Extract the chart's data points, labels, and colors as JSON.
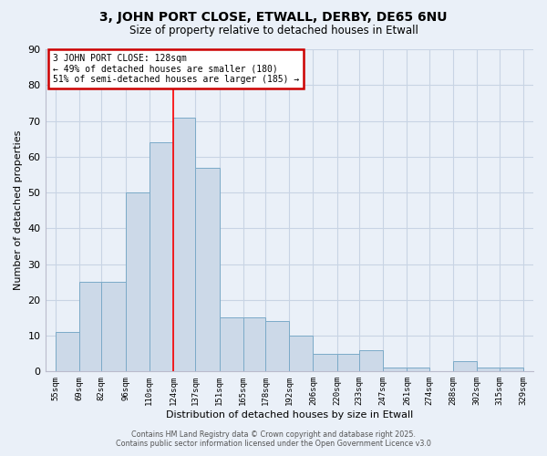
{
  "title_line1": "3, JOHN PORT CLOSE, ETWALL, DERBY, DE65 6NU",
  "title_line2": "Size of property relative to detached houses in Etwall",
  "xlabel": "Distribution of detached houses by size in Etwall",
  "ylabel": "Number of detached properties",
  "bar_edges": [
    55,
    69,
    82,
    96,
    110,
    124,
    137,
    151,
    165,
    178,
    192,
    206,
    220,
    233,
    247,
    261,
    274,
    288,
    302,
    315,
    329
  ],
  "bar_heights": [
    11,
    25,
    25,
    50,
    64,
    71,
    57,
    15,
    15,
    14,
    10,
    5,
    5,
    6,
    1,
    1,
    0,
    3,
    1,
    1
  ],
  "bar_color": "#ccd9e8",
  "bar_edge_color": "#7baac8",
  "red_line_x": 124,
  "ylim": [
    0,
    90
  ],
  "yticks": [
    0,
    10,
    20,
    30,
    40,
    50,
    60,
    70,
    80,
    90
  ],
  "grid_color": "#c8d4e4",
  "background_color": "#eaf0f8",
  "annotation_line1": "3 JOHN PORT CLOSE: 128sqm",
  "annotation_line2": "← 49% of detached houses are smaller (180)",
  "annotation_line3": "51% of semi-detached houses are larger (185) →",
  "annotation_box_color": "#ffffff",
  "annotation_box_edge": "#cc0000",
  "footer_line1": "Contains HM Land Registry data © Crown copyright and database right 2025.",
  "footer_line2": "Contains public sector information licensed under the Open Government Licence v3.0"
}
